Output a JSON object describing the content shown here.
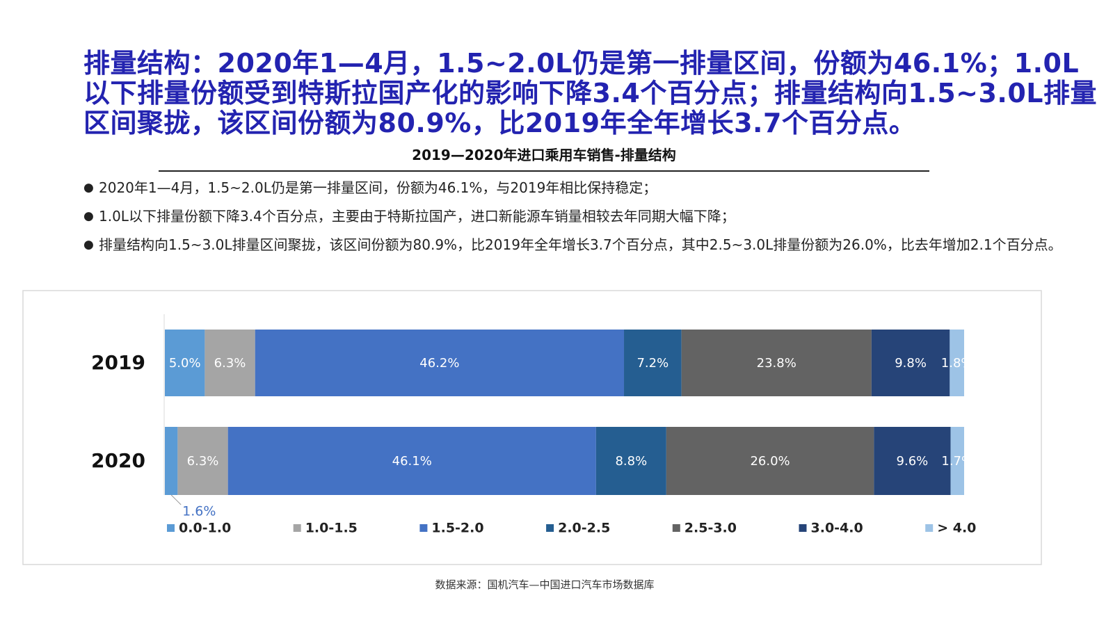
{
  "title": "排量结构：2020年1—4月，1.5~2.0L仍是第一排量区间，份额为46.1%；1.0L以下排量份额受到特斯拉国产化的影响下降3.4个百分点；排量结构向1.5~3.0L排量区间聚拢，该区间份额为80.9%，比2019年全年增长3.7个百分点。",
  "bullets": [
    "2020年1—4月，1.5~2.0L仍是第一排量区间，份额为46.1%，与2019年相比保持稳定；",
    "1.0L以下排量份额下降3.4个百分点，主要由于特斯拉国产，进口新能源车销量相较去年同期大幅下降；",
    "排量结构向1.5~3.0L排量区间聚拢，该区间份额为80.9%，比2019年全年增长3.7个百分点，其中2.5~3.0L排量份额为26.0%，比去年增加2.1个百分点。"
  ],
  "source": "数据来源：国机汽车—中国进口汽车市场数据库",
  "chart_data": {
    "type": "stacked-bar",
    "orientation": "horizontal",
    "title": "2019—2020年进口乘用车销售-排量结构",
    "categories": [
      "2019",
      "2020"
    ],
    "series": [
      {
        "name": "0.0-1.0",
        "color": "#5b9bd5",
        "values": [
          5.0,
          1.6
        ],
        "value_labels": [
          "5.0%",
          "1.6%"
        ]
      },
      {
        "name": "1.0-1.5",
        "color": "#a5a5a5",
        "values": [
          6.3,
          6.3
        ],
        "value_labels": [
          "6.3%",
          "6.3%"
        ]
      },
      {
        "name": "1.5-2.0",
        "color": "#4472c4",
        "values": [
          46.2,
          46.1
        ],
        "value_labels": [
          "46.2%",
          "46.1%"
        ]
      },
      {
        "name": "2.0-2.5",
        "color": "#255e91",
        "values": [
          7.2,
          8.8
        ],
        "value_labels": [
          "7.2%",
          "8.8%"
        ]
      },
      {
        "name": "2.5-3.0",
        "color": "#636363",
        "values": [
          23.8,
          26.0
        ],
        "value_labels": [
          "23.8%",
          "26.0%"
        ]
      },
      {
        "name": "3.0-4.0",
        "color": "#264478",
        "values": [
          9.8,
          9.6
        ],
        "value_labels": [
          "9.8%",
          "9.6%"
        ]
      },
      {
        "name": "> 4.0",
        "color": "#9dc3e6",
        "values": [
          1.8,
          1.7
        ],
        "value_labels": [
          "1.8%",
          "1.7%"
        ]
      }
    ]
  }
}
